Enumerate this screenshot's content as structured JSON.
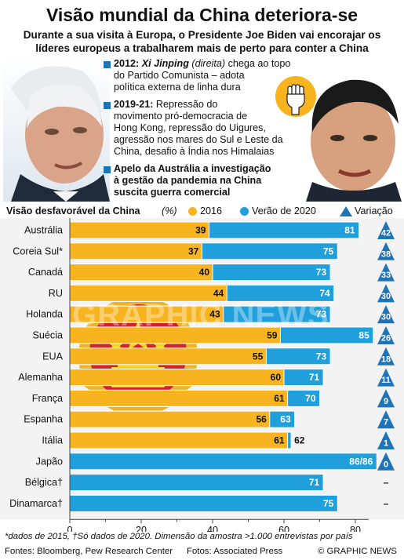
{
  "title": "Visão mundial da China deteriora-se",
  "subtitle_line1": "Durante a sua visita à Europa, o Presidente Joe Biden vai encorajar os",
  "subtitle_line2": "líderes europeus a trabalharem mais de perto para conter a China",
  "events": {
    "e1_bold": "2012:",
    "e1_name": "Xi Jinping",
    "e1_role": "(direita)",
    "e1_rest": "chega ao topo",
    "e1_l2": "do Partido Comunista – adota",
    "e1_l3": "política externa de linha dura",
    "e2_bold": "2019-21:",
    "e2_l1": "Repressão do",
    "e2_l2": "movimento pró-democracia de",
    "e2_l3": "Hong Kong, repressão do Uigures,",
    "e2_l4": "agressão nos mares do Sul e Leste da",
    "e2_l5": "China, desafio à Índia nos Himalaias",
    "e3_l1": "Apelo da Austrália a investigação",
    "e3_l2": "à gestão da pandemia na China",
    "e3_l3": "suscita guerra comercial"
  },
  "legend": {
    "title": "Visão desfavorável da China",
    "unit": "(%)",
    "s2016": "2016",
    "s2020": "Verão de 2020",
    "change": "Variação"
  },
  "colors": {
    "s2016": "#f7b41f",
    "s2020": "#1fa0dc",
    "triangle": "#1f73b7",
    "accent_blue": "#1f73b7"
  },
  "chart_data": {
    "type": "bar",
    "categories": [
      "Austrália",
      "Coreia Sul*",
      "Canadá",
      "RU",
      "Holanda",
      "Suécia",
      "EUA",
      "Alemanha",
      "França",
      "Espanha",
      "Itália",
      "Japão",
      "Bélgica†",
      "Dinamarca†"
    ],
    "series": [
      {
        "name": "2016",
        "values": [
          39,
          37,
          40,
          44,
          43,
          59,
          55,
          60,
          61,
          56,
          61,
          86,
          null,
          null
        ]
      },
      {
        "name": "Verão de 2020",
        "values": [
          81,
          75,
          73,
          74,
          73,
          85,
          73,
          71,
          70,
          63,
          62,
          86,
          71,
          75
        ]
      },
      {
        "name": "Variação",
        "values": [
          42,
          38,
          33,
          30,
          30,
          26,
          18,
          11,
          9,
          7,
          1,
          0,
          null,
          null
        ]
      }
    ],
    "labels_2016": [
      "39",
      "37",
      "40",
      "44",
      "43",
      "59",
      "55",
      "60",
      "61",
      "56",
      "61",
      "",
      "",
      ""
    ],
    "labels_2020": [
      "81",
      "75",
      "73",
      "74",
      "73",
      "85",
      "73",
      "71",
      "70",
      "63",
      "62",
      "86/86",
      "71",
      "75"
    ],
    "labels_change": [
      "42",
      "38",
      "33",
      "30",
      "30",
      "26",
      "18",
      "11",
      "9",
      "7",
      "1",
      "0",
      "–",
      "–"
    ],
    "xticks": [
      "0",
      "20",
      "40",
      "60",
      "80"
    ],
    "xlim": [
      0,
      90
    ],
    "grid": false
  },
  "footnote": "*dados de 2015, †Só dados de 2020. Dimensão da amostra >1.000 entrevistas por país",
  "credits": {
    "sources": "Fontes: Bloomberg, Pew Research Center",
    "photos": "Fotos: Associated Press",
    "brand": "© GRAPHIC NEWS"
  },
  "watermark": "GRAPHIC NEWS"
}
